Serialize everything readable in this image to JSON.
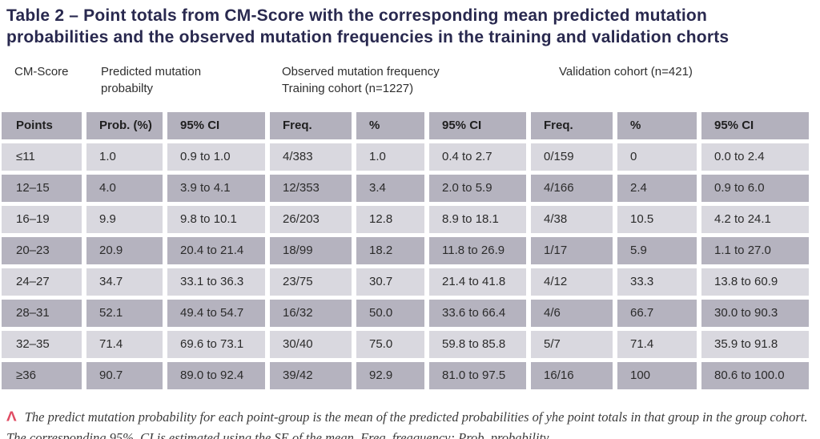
{
  "title": "Table 2 – Point totals from CM-Score with the corresponding mean predicted mutation probabilities and the observed mutation frequencies in the training and validation chorts",
  "group_headers": [
    {
      "label": "CM-Score"
    },
    {
      "label": "Predicted mutation\nprobabilty"
    },
    {
      "label": "Observed mutation frequency\nTraining cohort (n=1227)"
    },
    {
      "label": "Validation cohort (n=421)"
    }
  ],
  "table": {
    "columns": [
      "Points",
      "Prob. (%)",
      "95% CI",
      "Freq.",
      "%",
      "95% CI",
      "Freq.",
      "%",
      "95% CI"
    ],
    "rows": [
      [
        "≤11",
        "1.0",
        "0.9 to 1.0",
        "4/383",
        "1.0",
        "0.4 to 2.7",
        "0/159",
        "0",
        "0.0 to 2.4"
      ],
      [
        "12–15",
        "4.0",
        "3.9 to 4.1",
        "12/353",
        "3.4",
        "2.0 to 5.9",
        "4/166",
        "2.4",
        "0.9 to 6.0"
      ],
      [
        "16–19",
        "9.9",
        "9.8 to 10.1",
        "26/203",
        "12.8",
        "8.9 to 18.1",
        "4/38",
        "10.5",
        "4.2 to 24.1"
      ],
      [
        "20–23",
        "20.9",
        "20.4 to 21.4",
        "18/99",
        "18.2",
        "11.8 to 26.9",
        "1/17",
        "5.9",
        "1.1 to 27.0"
      ],
      [
        "24–27",
        "34.7",
        "33.1 to 36.3",
        "23/75",
        "30.7",
        "21.4 to 41.8",
        "4/12",
        "33.3",
        "13.8 to 60.9"
      ],
      [
        "28–31",
        "52.1",
        "49.4 to 54.7",
        "16/32",
        "50.0",
        "33.6 to 66.4",
        "4/6",
        "66.7",
        "30.0 to 90.3"
      ],
      [
        "32–35",
        "71.4",
        "69.6 to 73.1",
        "30/40",
        "75.0",
        "59.8 to 85.8",
        "5/7",
        "71.4",
        "35.9 to 91.8"
      ],
      [
        "≥36",
        "90.7",
        "89.0 to 92.4",
        "39/42",
        "92.9",
        "81.0 to 97.5",
        "16/16",
        "100",
        "80.6 to 100.0"
      ]
    ]
  },
  "footnote": {
    "marker_icon": "Λ",
    "text": "The predict mutation probability for each point-group is the mean of the predicted probabilities of yhe point totals in that group in the group cohort. The corresponding 95%. CI is estimated using the SE of the mean. Freq. freaquency; Prob. probability."
  },
  "colors": {
    "title_text": "#29294f",
    "header_row_bg": "#b3b1bd",
    "row_light_bg": "#d9d8df",
    "row_dark_bg": "#b5b3bf",
    "footnote_marker": "#e04c63"
  }
}
